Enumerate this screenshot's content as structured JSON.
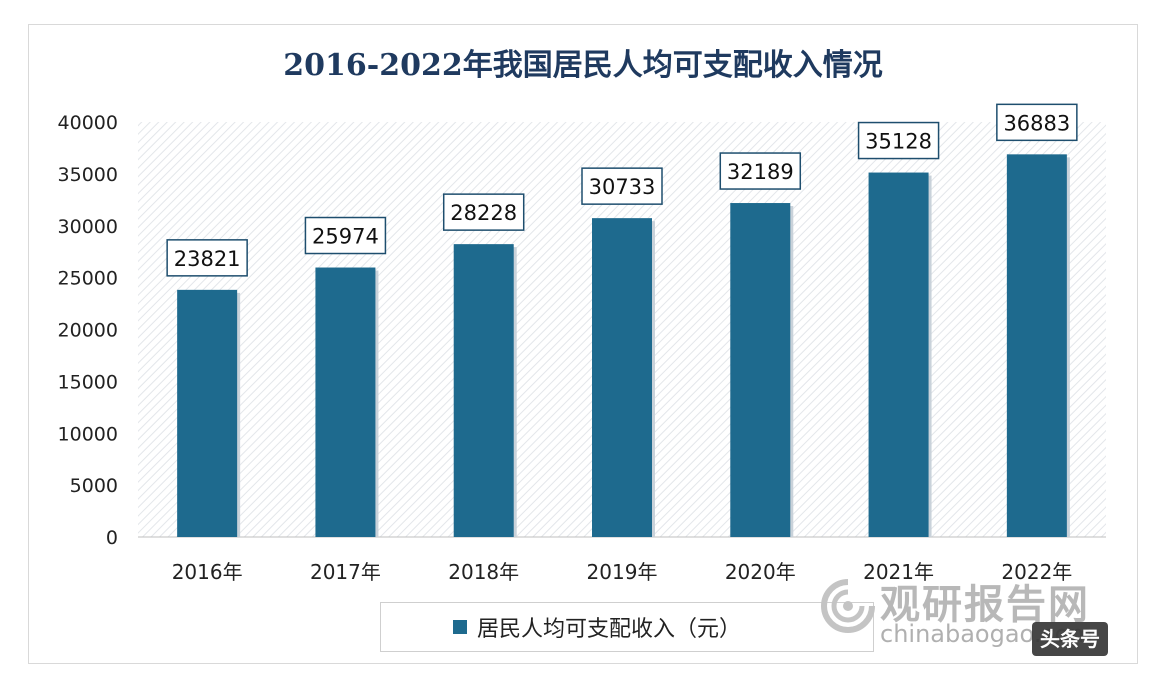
{
  "chart_data": {
    "type": "bar",
    "title": "2016-2022年我国居民人均可支配收入情况",
    "categories": [
      "2016年",
      "2017年",
      "2018年",
      "2019年",
      "2020年",
      "2021年",
      "2022年"
    ],
    "series": [
      {
        "name": "居民人均可支配收入（元）",
        "values": [
          23821,
          25974,
          28228,
          30733,
          32189,
          35128,
          36883
        ]
      }
    ],
    "yticks": [
      "0",
      "5000",
      "10000",
      "15000",
      "20000",
      "25000",
      "30000",
      "35000",
      "40000"
    ],
    "ylim": [
      0,
      40000
    ],
    "bar_color": "#1e6a8e",
    "legend_position": "bottom"
  },
  "watermark": {
    "logo_text": "观研报告网",
    "url_text": "chinabaogao.com",
    "badge_text": "头条号"
  }
}
